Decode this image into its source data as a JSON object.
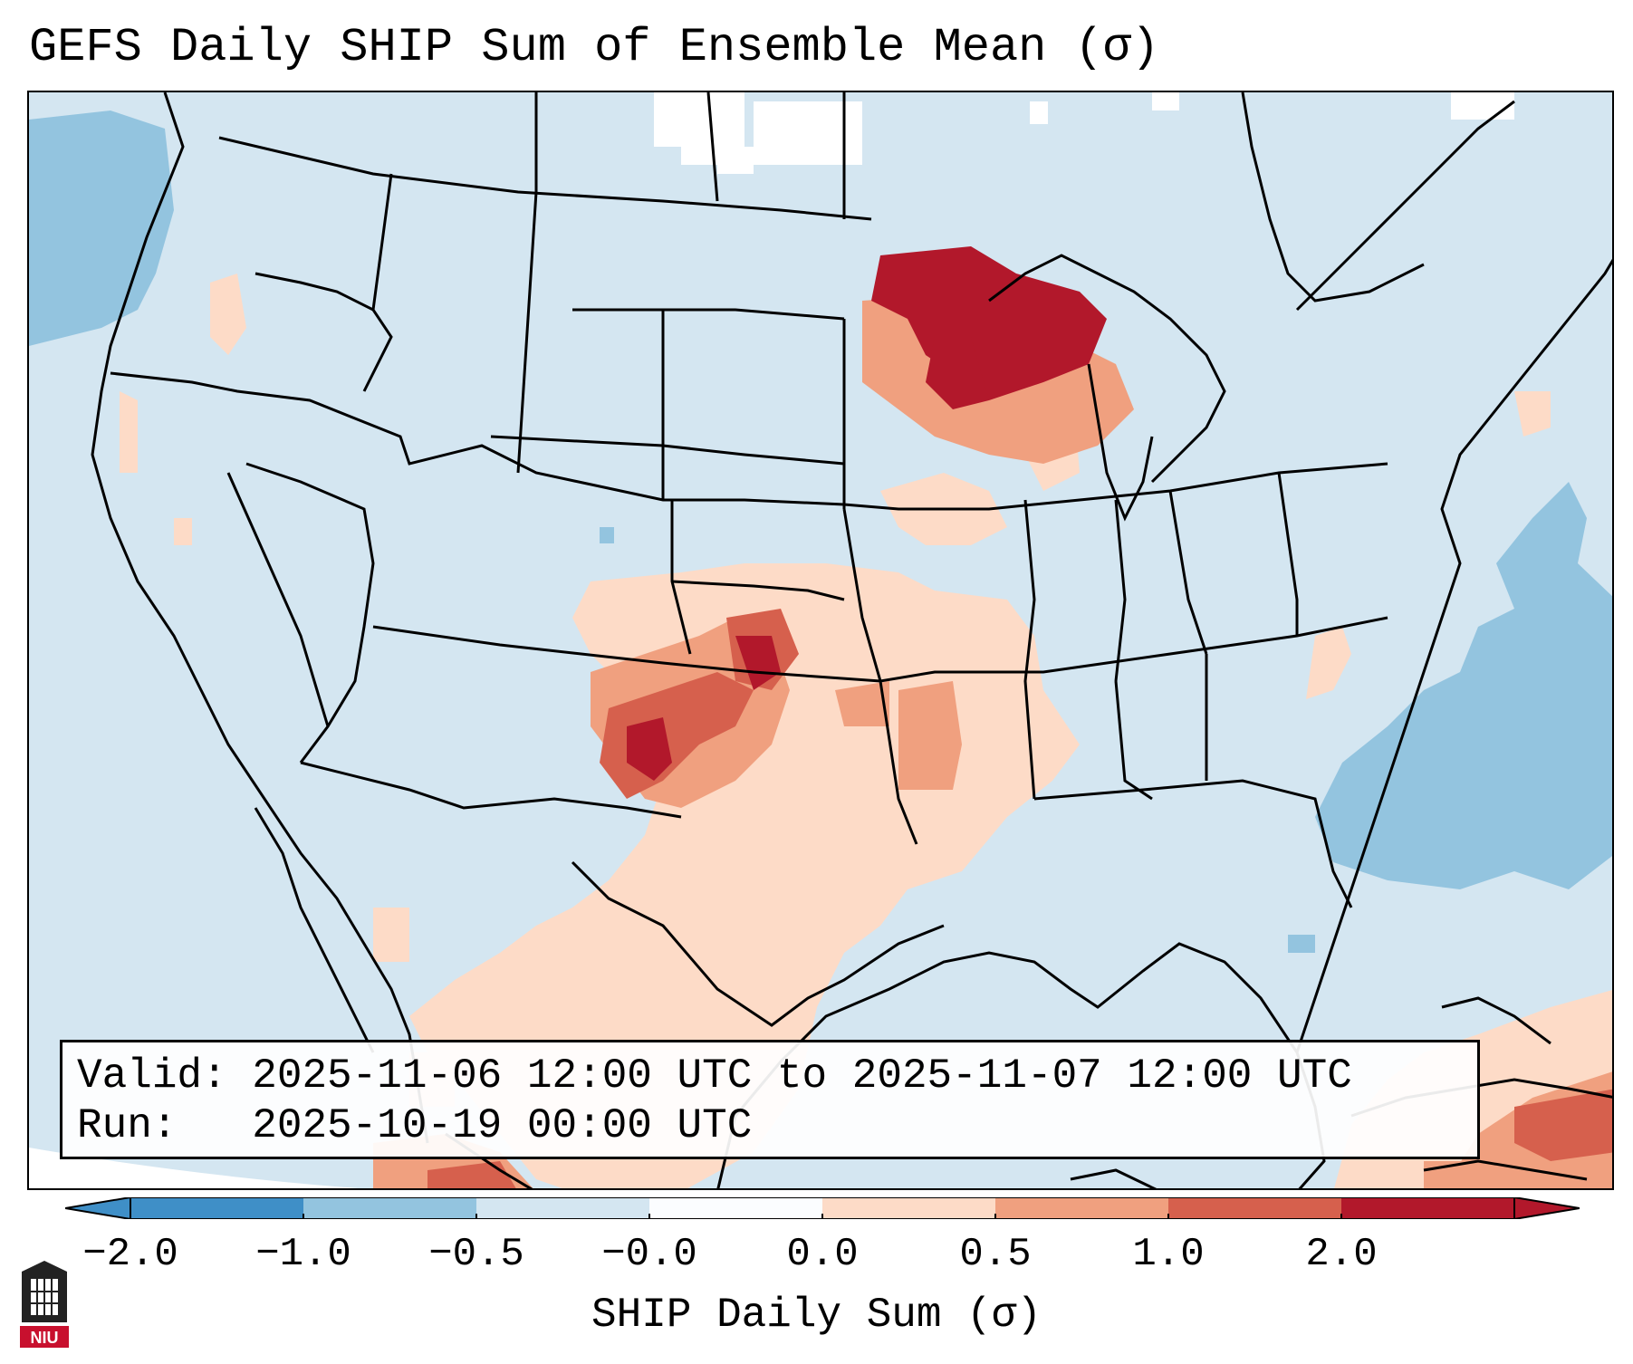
{
  "title": "GEFS Daily SHIP Sum of Ensemble Mean (σ)",
  "info": {
    "valid_line": "Valid: 2025-11-06 12:00 UTC to 2025-11-07 12:00 UTC",
    "run_line": "Run:   2025-10-19 00:00 UTC"
  },
  "colorbar": {
    "label": "SHIP Daily Sum (σ)",
    "ticks": [
      "−2.0",
      "−1.0",
      "−0.5",
      "−0.0",
      "0.0",
      "0.5",
      "1.0",
      "2.0"
    ],
    "colors": [
      "#3f8fc7",
      "#93c4df",
      "#d4e6f1",
      "#fbfdff",
      "#fddbc7",
      "#f0a07f",
      "#d6604d",
      "#b2182b"
    ],
    "extend": "both"
  },
  "logo": {
    "text": "NIU",
    "icon": "university-logo-icon"
  }
}
